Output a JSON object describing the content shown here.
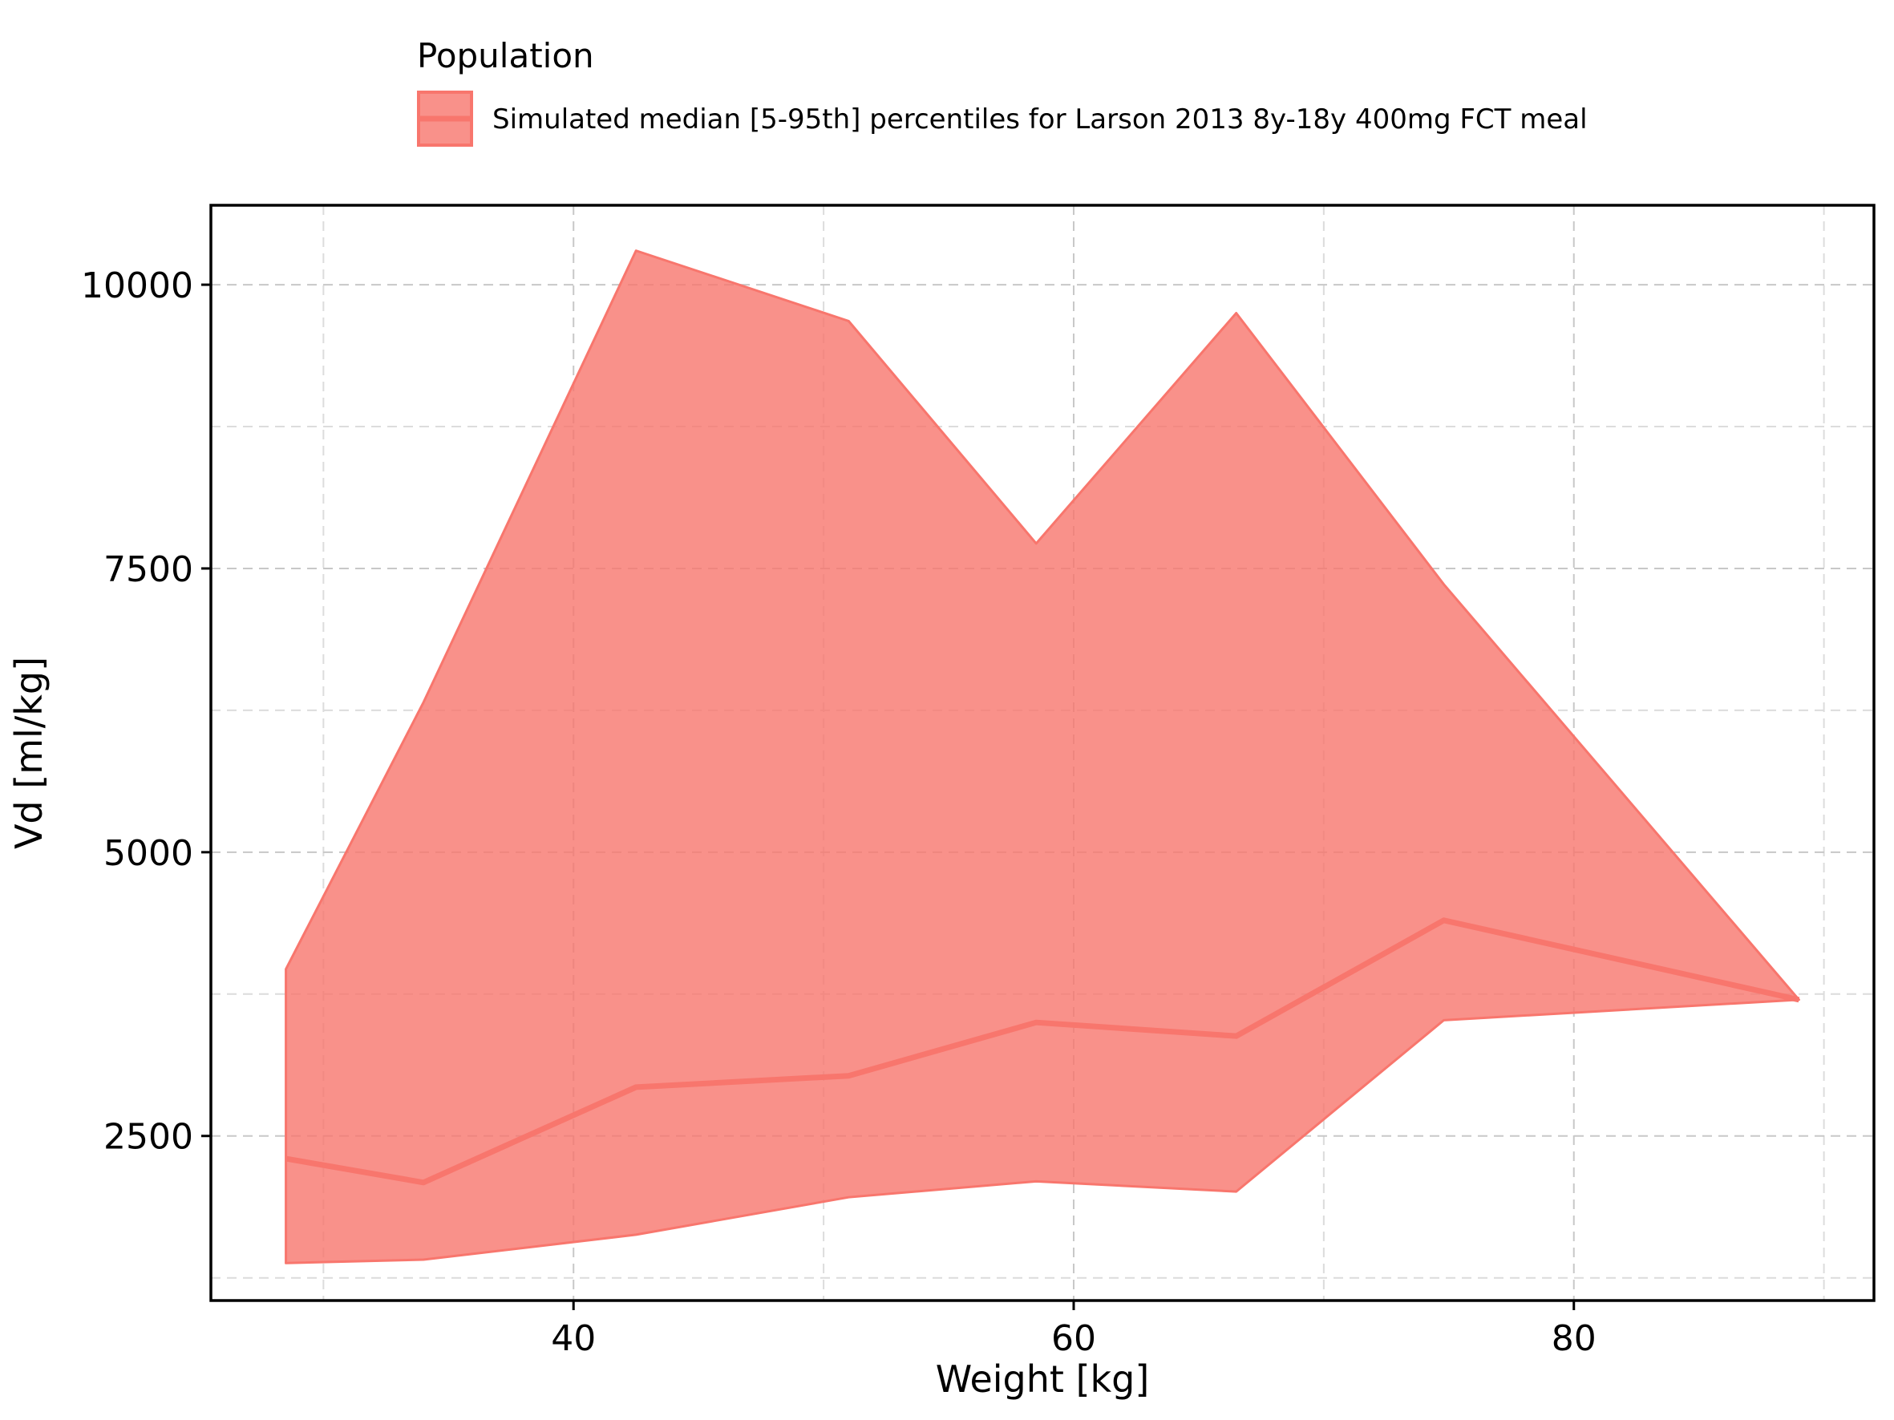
{
  "chart_data": {
    "type": "area",
    "xlabel": "Weight [kg]",
    "ylabel": "Vd [ml/kg]",
    "xlim": [
      25.5,
      92
    ],
    "ylim": [
      1050,
      10700
    ],
    "xticks": [
      40,
      60,
      80
    ],
    "xtick_labels": [
      "40",
      "60",
      "80"
    ],
    "yticks": [
      2500,
      5000,
      7500,
      10000
    ],
    "ytick_labels": [
      "2500",
      "5000",
      "7500",
      "10000"
    ],
    "grid": true,
    "legend": {
      "title": "Population",
      "placement": "top-center",
      "entries": [
        "Simulated median [5-95th] percentiles for Larson 2013 8y-18y 400mg FCT meal"
      ]
    },
    "color": "#f8766d",
    "series": [
      {
        "name": "Simulated median [5-95th] percentiles for Larson 2013 8y-18y 400mg FCT meal",
        "x": [
          28.5,
          34.0,
          42.5,
          51.0,
          58.5,
          66.5,
          74.8,
          89.0
        ],
        "median": [
          2300,
          2090,
          2930,
          3030,
          3500,
          3380,
          4400,
          3700
        ],
        "lower": [
          1380,
          1410,
          1630,
          1960,
          2100,
          2010,
          3520,
          3700
        ],
        "upper": [
          3970,
          6320,
          10300,
          9680,
          7720,
          9750,
          7360,
          3700
        ]
      }
    ]
  }
}
